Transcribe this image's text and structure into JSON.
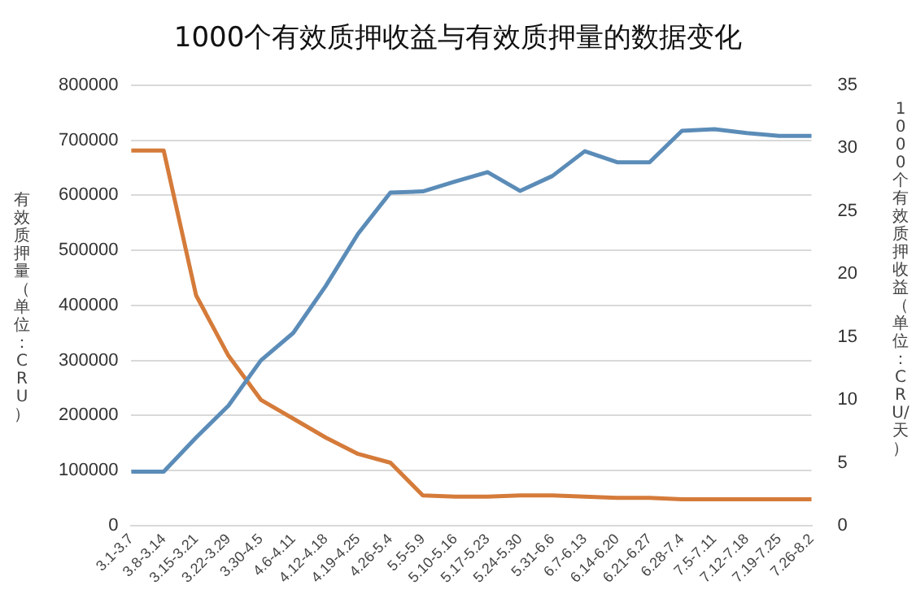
{
  "chart_data": {
    "type": "line",
    "title": "1000个有效质押收益与有效质押量的数据变化",
    "ylabel": "有效质押量（单位：CRU）",
    "y2label": "1000个有效质押收益（单位：CRU/天）",
    "categories": [
      "3.1-3.7",
      "3.8-3.14",
      "3.15-3.21",
      "3.22-3.29",
      "3.30-4.5",
      "4.6-4.11",
      "4.12-4.18",
      "4.19-4.25",
      "4.26-5.4",
      "5.5-5.9",
      "5.10-5.16",
      "5.17-5.23",
      "5.24-5.30",
      "5.31-6.6",
      "6.7-6.13",
      "6.14-6.20",
      "6.21-6.27",
      "6.28-7.4",
      "7.5-7.11",
      "7.12-7.18",
      "7.19-7.25",
      "7.26-8.2"
    ],
    "series": [
      {
        "color": "#5b8cb8",
        "values": [
          98000,
          98000,
          160000,
          218000,
          300000,
          350000,
          435000,
          530000,
          605000,
          607000,
          625000,
          642000,
          608000,
          635000,
          680000,
          660000,
          660000,
          717000,
          720000,
          713000,
          708000,
          708000
        ]
      },
      {
        "color": "#d57b3a",
        "axis": "y2",
        "values": [
          29.8,
          29.8,
          18.3,
          13.5,
          10,
          8.5,
          7,
          5.7,
          5,
          2.4,
          2.3,
          2.3,
          2.4,
          2.4,
          2.3,
          2.2,
          2.2,
          2.1,
          2.1,
          2.1,
          2.1,
          2.1
        ]
      }
    ],
    "ylim": [
      0,
      800000
    ],
    "yticks": [
      0,
      100000,
      200000,
      300000,
      400000,
      500000,
      600000,
      700000,
      800000
    ],
    "y2lim": [
      0,
      35
    ],
    "y2ticks": [
      0,
      5,
      10,
      15,
      20,
      25,
      30,
      35
    ],
    "grid": "y",
    "legend": false,
    "marker": "none",
    "line_style": "solid"
  }
}
